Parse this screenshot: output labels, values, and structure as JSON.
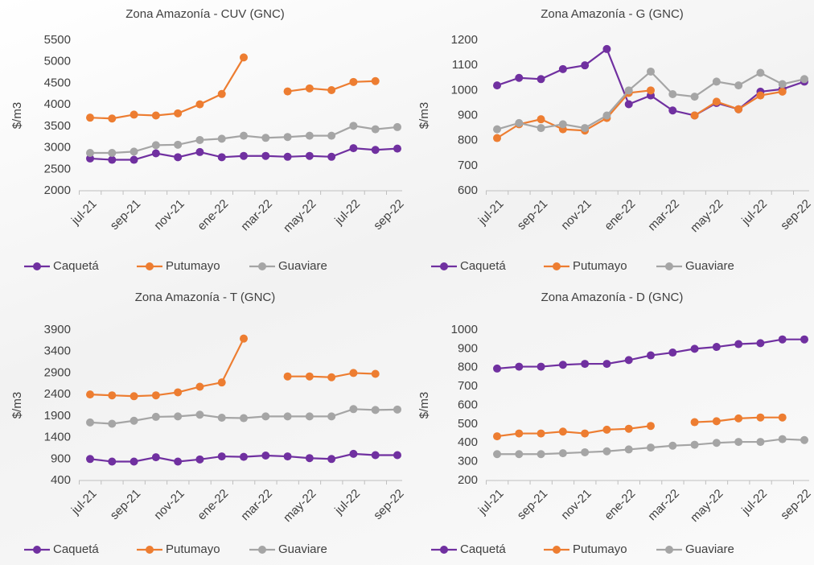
{
  "chart_data": [
    {
      "type": "line",
      "title": "Zona Amazonía  - CUV (GNC)",
      "y_label": "$/m3",
      "categories": [
        "jul-21",
        null,
        "sep-21",
        null,
        "nov-21",
        null,
        "ene-22",
        null,
        "mar-22",
        null,
        "may-22",
        null,
        "jul-22",
        null,
        "sep-22"
      ],
      "ylim": [
        2000,
        5500
      ],
      "yticks": [
        2000,
        2500,
        3000,
        3500,
        4000,
        4500,
        5000,
        5500
      ],
      "series": [
        {
          "name": "Caquetá",
          "color": "#7030a0",
          "values": [
            2750,
            2720,
            2720,
            2870,
            2780,
            2900,
            2780,
            2810,
            2810,
            2790,
            2810,
            2790,
            2990,
            2950,
            2980
          ]
        },
        {
          "name": "Putumayo",
          "color": "#ed7d31",
          "values": [
            3700,
            3680,
            3770,
            3750,
            3800,
            4010,
            4250,
            5100,
            null,
            4310,
            4380,
            4340,
            4530,
            4550,
            null
          ]
        },
        {
          "name": "Guaviare",
          "color": "#a5a5a5",
          "values": [
            2880,
            2880,
            2910,
            3060,
            3070,
            3180,
            3210,
            3280,
            3230,
            3250,
            3280,
            3280,
            3510,
            3430,
            3480
          ]
        }
      ]
    },
    {
      "type": "line",
      "title": "Zona Amazonía - G (GNC)",
      "y_label": "$/m3",
      "categories": [
        "jul-21",
        null,
        "sep-21",
        null,
        "nov-21",
        null,
        "ene-22",
        null,
        "mar-22",
        null,
        "may-22",
        null,
        "jul-22",
        null,
        "sep-22"
      ],
      "ylim": [
        600,
        1200
      ],
      "yticks": [
        600,
        700,
        800,
        900,
        1000,
        1100,
        1200
      ],
      "series": [
        {
          "name": "Caquetá",
          "color": "#7030a0",
          "values": [
            1020,
            1050,
            1045,
            1085,
            1100,
            1165,
            945,
            980,
            920,
            900,
            950,
            925,
            995,
            1005,
            1035
          ]
        },
        {
          "name": "Putumayo",
          "color": "#ed7d31",
          "values": [
            810,
            865,
            885,
            845,
            840,
            890,
            990,
            1000,
            null,
            900,
            955,
            925,
            980,
            995,
            null
          ]
        },
        {
          "name": "Guaviare",
          "color": "#a5a5a5",
          "values": [
            845,
            870,
            850,
            865,
            850,
            900,
            1000,
            1075,
            985,
            975,
            1035,
            1020,
            1070,
            1025,
            1045
          ]
        }
      ]
    },
    {
      "type": "line",
      "title": "Zona Amazonía - T (GNC)",
      "y_label": "$/m3",
      "categories": [
        "jul-21",
        null,
        "sep-21",
        null,
        "nov-21",
        null,
        "ene-22",
        null,
        "mar-22",
        null,
        "may-22",
        null,
        "jul-22",
        null,
        "sep-22"
      ],
      "ylim": [
        400,
        3900
      ],
      "yticks": [
        400,
        900,
        1400,
        1900,
        2400,
        2900,
        3400,
        3900
      ],
      "series": [
        {
          "name": "Caquetá",
          "color": "#7030a0",
          "values": [
            900,
            840,
            840,
            940,
            840,
            890,
            960,
            950,
            980,
            960,
            920,
            900,
            1020,
            990,
            990
          ]
        },
        {
          "name": "Putumayo",
          "color": "#ed7d31",
          "values": [
            2400,
            2380,
            2360,
            2380,
            2450,
            2580,
            2680,
            3700,
            null,
            2820,
            2820,
            2800,
            2900,
            2880,
            null
          ]
        },
        {
          "name": "Guaviare",
          "color": "#a5a5a5",
          "values": [
            1750,
            1720,
            1790,
            1880,
            1890,
            1930,
            1860,
            1850,
            1890,
            1890,
            1890,
            1890,
            2060,
            2040,
            2050
          ]
        }
      ]
    },
    {
      "type": "line",
      "title": "Zona Amazonía - D (GNC)",
      "y_label": "$/m3",
      "categories": [
        "jul-21",
        null,
        "sep-21",
        null,
        "nov-21",
        null,
        "ene-22",
        null,
        "mar-22",
        null,
        "may-22",
        null,
        "jul-22",
        null,
        "sep-22"
      ],
      "ylim": [
        200,
        1000
      ],
      "yticks": [
        200,
        300,
        400,
        500,
        600,
        700,
        800,
        900,
        1000
      ],
      "series": [
        {
          "name": "Caquetá",
          "color": "#7030a0",
          "values": [
            795,
            805,
            805,
            815,
            820,
            820,
            840,
            865,
            880,
            900,
            910,
            925,
            930,
            950,
            950
          ]
        },
        {
          "name": "Putumayo",
          "color": "#ed7d31",
          "values": [
            435,
            450,
            450,
            460,
            450,
            470,
            475,
            490,
            null,
            510,
            515,
            530,
            535,
            535,
            null
          ]
        },
        {
          "name": "Guaviare",
          "color": "#a5a5a5",
          "values": [
            340,
            340,
            340,
            345,
            350,
            355,
            365,
            375,
            385,
            390,
            400,
            405,
            405,
            420,
            415
          ]
        }
      ]
    }
  ]
}
